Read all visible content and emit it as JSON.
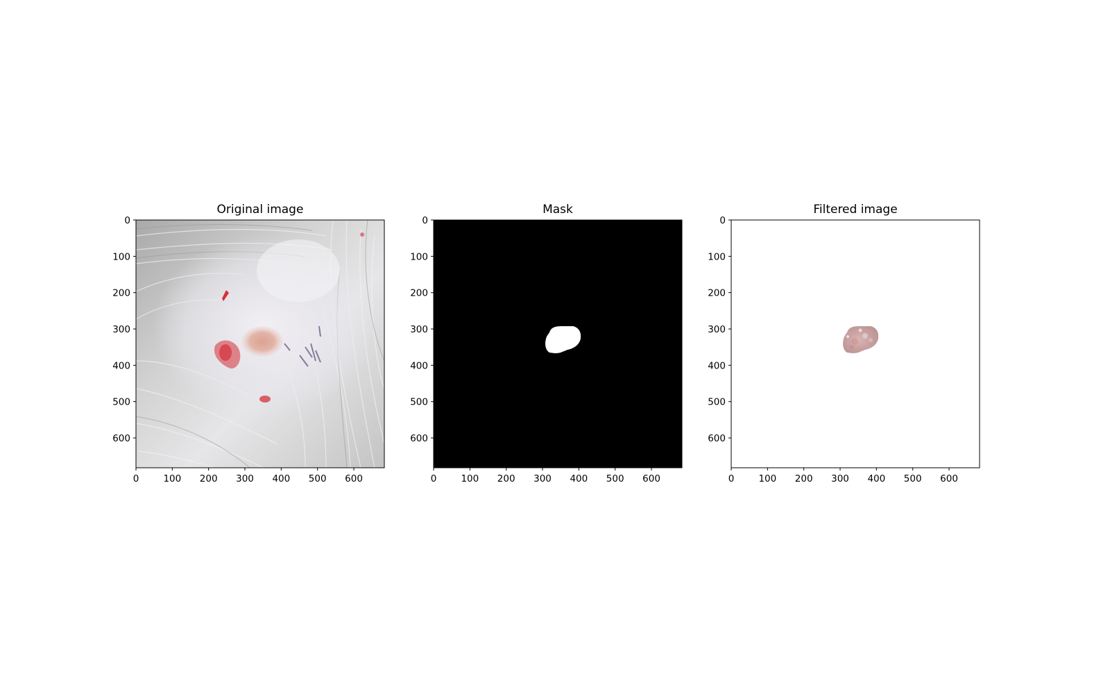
{
  "figure": {
    "panels": [
      {
        "id": "original",
        "title": "Original image",
        "content": "photo",
        "xticks": [
          "0",
          "100",
          "200",
          "300",
          "400",
          "500",
          "600"
        ],
        "yticks": [
          "0",
          "100",
          "200",
          "300",
          "400",
          "500",
          "600"
        ],
        "extent": 684
      },
      {
        "id": "mask",
        "title": "Mask",
        "content": "mask",
        "xticks": [
          "0",
          "100",
          "200",
          "300",
          "400",
          "500",
          "600"
        ],
        "yticks": [
          "0",
          "100",
          "200",
          "300",
          "400",
          "500",
          "600"
        ],
        "extent": 684
      },
      {
        "id": "filtered",
        "title": "Filtered image",
        "content": "filtered",
        "xticks": [
          "0",
          "100",
          "200",
          "300",
          "400",
          "500",
          "600"
        ],
        "yticks": [
          "0",
          "100",
          "200",
          "300",
          "400",
          "500",
          "600"
        ],
        "extent": 684
      }
    ],
    "colors": {
      "mask_background": "#000000",
      "mask_region": "#ffffff",
      "filtered_background": "#ffffff",
      "lesion_tone": "#c9a3a3",
      "blood_red": "#d6303a",
      "hair_base": "#d9d9d9",
      "bruise_purple": "#5a4a7a"
    }
  }
}
